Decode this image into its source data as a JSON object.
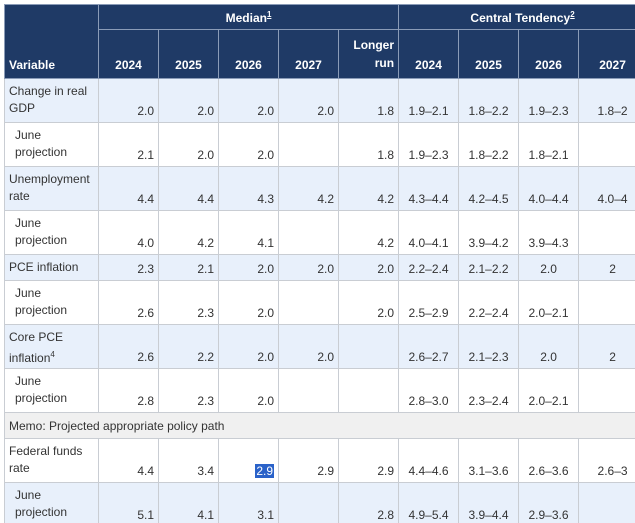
{
  "header": {
    "variable": "Variable",
    "median": "Median",
    "median_note": "1",
    "central_tendency": "Central Tendency",
    "central_note": "2",
    "median_cols": [
      "2024",
      "2025",
      "2026",
      "2027",
      "Longer",
      "run"
    ],
    "ct_cols": [
      "2024",
      "2025",
      "2026",
      "2027"
    ]
  },
  "rows": [
    {
      "label": [
        "Change in real",
        "GDP"
      ],
      "median": [
        "2.0",
        "2.0",
        "2.0",
        "2.0",
        "1.8"
      ],
      "ct": [
        "1.9–2.1",
        "1.8–2.2",
        "1.9–2.3",
        "1.8–2"
      ]
    },
    {
      "label": [
        "June",
        "projection"
      ],
      "median": [
        "2.1",
        "2.0",
        "2.0",
        "",
        "1.8"
      ],
      "ct": [
        "1.9–2.3",
        "1.8–2.2",
        "1.8–2.1",
        ""
      ]
    },
    {
      "label": [
        "Unemployment",
        "rate"
      ],
      "median": [
        "4.4",
        "4.4",
        "4.3",
        "4.2",
        "4.2"
      ],
      "ct": [
        "4.3–4.4",
        "4.2–4.5",
        "4.0–4.4",
        "4.0–4"
      ]
    },
    {
      "label": [
        "June",
        "projection"
      ],
      "median": [
        "4.0",
        "4.2",
        "4.1",
        "",
        "4.2"
      ],
      "ct": [
        "4.0–4.1",
        "3.9–4.2",
        "3.9–4.3",
        ""
      ]
    },
    {
      "label": [
        "PCE inflation",
        ""
      ],
      "median": [
        "2.3",
        "2.1",
        "2.0",
        "2.0",
        "2.0"
      ],
      "ct": [
        "2.2–2.4",
        "2.1–2.2",
        "2.0",
        "2"
      ]
    },
    {
      "label": [
        "June",
        "projection"
      ],
      "median": [
        "2.6",
        "2.3",
        "2.0",
        "",
        "2.0"
      ],
      "ct": [
        "2.5–2.9",
        "2.2–2.4",
        "2.0–2.1",
        ""
      ]
    },
    {
      "label": [
        "Core PCE",
        "inflation"
      ],
      "note": "4",
      "median": [
        "2.6",
        "2.2",
        "2.0",
        "2.0",
        ""
      ],
      "ct": [
        "2.6–2.7",
        "2.1–2.3",
        "2.0",
        "2"
      ]
    },
    {
      "label": [
        "June",
        "projection"
      ],
      "median": [
        "2.8",
        "2.3",
        "2.0",
        "",
        ""
      ],
      "ct": [
        "2.8–3.0",
        "2.3–2.4",
        "2.0–2.1",
        ""
      ]
    }
  ],
  "memo": "Memo: Projected appropriate policy path",
  "policy_rows": [
    {
      "label": [
        "Federal funds",
        "rate"
      ],
      "median": [
        "4.4",
        "3.4",
        "2.9",
        "2.9",
        "2.9"
      ],
      "ct": [
        "4.4–4.6",
        "3.1–3.6",
        "2.6–3.6",
        "2.6–3"
      ]
    },
    {
      "label": [
        "June",
        "projection"
      ],
      "median": [
        "5.1",
        "4.1",
        "3.1",
        "",
        "2.8"
      ],
      "ct": [
        "4.9–5.4",
        "3.9–4.4",
        "2.9–3.6",
        ""
      ]
    }
  ],
  "selection": {
    "text": "2.9"
  }
}
